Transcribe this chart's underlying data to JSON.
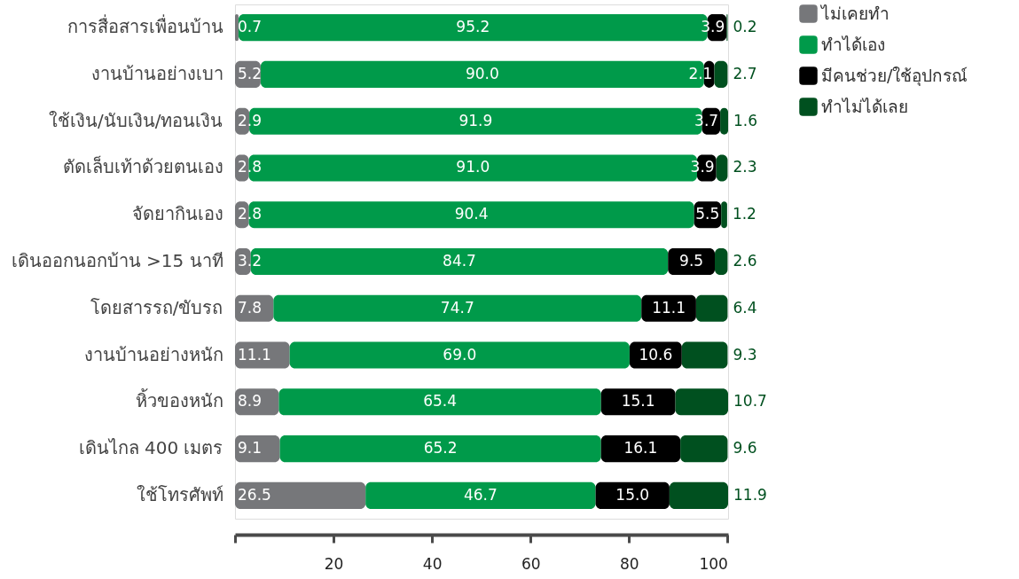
{
  "chart_data": {
    "type": "bar",
    "orientation": "horizontal",
    "stacked": true,
    "categories": [
      "การสื่อสารเพื่อนบ้าน",
      "งานบ้านอย่างเบา",
      "ใช้เงิน/นับเงิน/ทอนเงิน",
      "ตัดเล็บเท้าด้วยตนเอง",
      "จัดยากินเอง",
      "เดินออกนอกบ้าน >15 นาที",
      "โดยสารรถ/ขับรถ",
      "งานบ้านอย่างหนัก",
      "หิ้วของหนัก",
      "เดินไกล 400 เมตร",
      "ใช้โทรศัพท์"
    ],
    "series": [
      {
        "name": "ไม่เคยทำ",
        "color": "#76777a",
        "values": [
          0.7,
          5.2,
          2.9,
          2.8,
          2.8,
          3.2,
          7.8,
          11.1,
          8.9,
          9.1,
          26.5
        ],
        "value_labels": [
          "0.7",
          "5.2",
          "2.9",
          "2.8",
          "2.8",
          "3.2",
          "7.8",
          "11.1",
          "8.9",
          "9.1",
          "26.5"
        ]
      },
      {
        "name": "ทำได้เอง",
        "color": "#009a4a",
        "values": [
          95.2,
          90.0,
          91.9,
          91.0,
          90.4,
          84.7,
          74.7,
          69.0,
          65.4,
          65.2,
          46.7
        ],
        "value_labels": [
          "95.2",
          "90.0",
          "91.9",
          "91.0",
          "90.4",
          "84.7",
          "74.7",
          "69.0",
          "65.4",
          "65.2",
          "46.7"
        ]
      },
      {
        "name": "มีคนช่วย/ใช้อุปกรณ์",
        "color": "#000000",
        "values": [
          3.9,
          2.1,
          3.7,
          3.9,
          5.5,
          9.5,
          11.1,
          10.6,
          15.1,
          16.1,
          15.0
        ],
        "value_labels": [
          "3.9",
          "2.1",
          "3.7",
          "3.9",
          "5.5",
          "9.5",
          "11.1",
          "10.6",
          "15.1",
          "16.1",
          "15.0"
        ]
      },
      {
        "name": "ทำไม่ได้เลย",
        "color": "#00501f",
        "values": [
          0.2,
          2.7,
          1.6,
          2.3,
          1.2,
          2.6,
          6.4,
          9.3,
          10.7,
          9.6,
          11.9
        ],
        "value_labels": [
          "0.2",
          "2.7",
          "1.6",
          "2.3",
          "1.2",
          "2.6",
          "6.4",
          "9.3",
          "10.7",
          "9.6",
          "11.9"
        ]
      }
    ],
    "xlim": [
      0,
      100.1
    ],
    "xticks": [
      {
        "value": 0,
        "label": null
      },
      20,
      40,
      60,
      80,
      100
    ],
    "legend": "top right"
  }
}
